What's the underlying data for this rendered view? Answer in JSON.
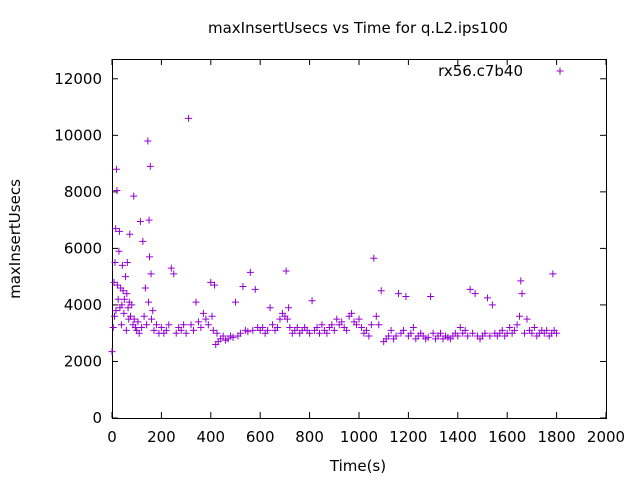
{
  "chart_data": {
    "type": "scatter",
    "title": "maxInsertUsecs vs Time for q.L2.ips100",
    "xlabel": "Time(s)",
    "ylabel": "maxInsertUsecs",
    "xlim": [
      0,
      2000
    ],
    "ylim": [
      0,
      12700
    ],
    "x_ticks": [
      0,
      200,
      400,
      600,
      800,
      1000,
      1200,
      1400,
      1600,
      1800,
      2000
    ],
    "y_ticks": [
      0,
      2000,
      4000,
      6000,
      8000,
      10000,
      12000
    ],
    "grid": false,
    "legend_position": "top-right",
    "series": [
      {
        "name": "rx56.c7b40",
        "color": "#9400d3",
        "marker": "plus",
        "points": [
          [
            0,
            2350
          ],
          [
            5,
            3200
          ],
          [
            8,
            4800
          ],
          [
            10,
            3600
          ],
          [
            12,
            5500
          ],
          [
            15,
            6700
          ],
          [
            16,
            3800
          ],
          [
            18,
            8800
          ],
          [
            20,
            8050
          ],
          [
            22,
            4700
          ],
          [
            25,
            4200
          ],
          [
            28,
            5900
          ],
          [
            30,
            6600
          ],
          [
            32,
            3900
          ],
          [
            35,
            4600
          ],
          [
            38,
            3300
          ],
          [
            40,
            4000
          ],
          [
            42,
            5400
          ],
          [
            45,
            4500
          ],
          [
            48,
            3700
          ],
          [
            50,
            4200
          ],
          [
            55,
            5000
          ],
          [
            58,
            3100
          ],
          [
            60,
            4400
          ],
          [
            62,
            5500
          ],
          [
            65,
            3900
          ],
          [
            68,
            3500
          ],
          [
            70,
            4100
          ],
          [
            72,
            6500
          ],
          [
            75,
            3600
          ],
          [
            80,
            4000
          ],
          [
            85,
            3300
          ],
          [
            88,
            7850
          ],
          [
            90,
            3500
          ],
          [
            95,
            3200
          ],
          [
            100,
            3100
          ],
          [
            105,
            3400
          ],
          [
            110,
            3000
          ],
          [
            115,
            6950
          ],
          [
            120,
            3200
          ],
          [
            125,
            6250
          ],
          [
            130,
            3600
          ],
          [
            135,
            4600
          ],
          [
            140,
            3300
          ],
          [
            145,
            9800
          ],
          [
            148,
            4100
          ],
          [
            150,
            7000
          ],
          [
            152,
            5700
          ],
          [
            155,
            8900
          ],
          [
            158,
            5100
          ],
          [
            160,
            3500
          ],
          [
            165,
            3800
          ],
          [
            170,
            3100
          ],
          [
            180,
            3300
          ],
          [
            190,
            3000
          ],
          [
            200,
            3200
          ],
          [
            210,
            3000
          ],
          [
            220,
            3100
          ],
          [
            230,
            3300
          ],
          [
            240,
            5300
          ],
          [
            250,
            5100
          ],
          [
            260,
            3000
          ],
          [
            270,
            3200
          ],
          [
            280,
            3100
          ],
          [
            290,
            3300
          ],
          [
            300,
            3000
          ],
          [
            310,
            10600
          ],
          [
            320,
            3300
          ],
          [
            330,
            3100
          ],
          [
            340,
            4100
          ],
          [
            350,
            3400
          ],
          [
            360,
            3200
          ],
          [
            370,
            3700
          ],
          [
            380,
            3500
          ],
          [
            390,
            3300
          ],
          [
            400,
            4800
          ],
          [
            405,
            3600
          ],
          [
            410,
            3100
          ],
          [
            415,
            4700
          ],
          [
            420,
            2600
          ],
          [
            425,
            3000
          ],
          [
            430,
            2700
          ],
          [
            440,
            2800
          ],
          [
            450,
            2900
          ],
          [
            460,
            2750
          ],
          [
            470,
            2800
          ],
          [
            480,
            2900
          ],
          [
            490,
            2850
          ],
          [
            500,
            4100
          ],
          [
            510,
            2900
          ],
          [
            520,
            3000
          ],
          [
            530,
            4650
          ],
          [
            540,
            3100
          ],
          [
            550,
            3050
          ],
          [
            560,
            5150
          ],
          [
            570,
            3100
          ],
          [
            580,
            4550
          ],
          [
            590,
            3200
          ],
          [
            600,
            3100
          ],
          [
            610,
            3200
          ],
          [
            620,
            3000
          ],
          [
            630,
            3100
          ],
          [
            640,
            3900
          ],
          [
            650,
            3300
          ],
          [
            660,
            3100
          ],
          [
            670,
            3200
          ],
          [
            680,
            3500
          ],
          [
            690,
            3700
          ],
          [
            700,
            3600
          ],
          [
            705,
            5200
          ],
          [
            710,
            3500
          ],
          [
            715,
            3900
          ],
          [
            720,
            3200
          ],
          [
            730,
            3000
          ],
          [
            740,
            3100
          ],
          [
            750,
            3200
          ],
          [
            760,
            3000
          ],
          [
            770,
            3100
          ],
          [
            780,
            3200
          ],
          [
            790,
            3100
          ],
          [
            800,
            3000
          ],
          [
            810,
            4150
          ],
          [
            820,
            3100
          ],
          [
            830,
            3200
          ],
          [
            840,
            3000
          ],
          [
            850,
            3300
          ],
          [
            860,
            3100
          ],
          [
            870,
            3000
          ],
          [
            880,
            3200
          ],
          [
            890,
            3300
          ],
          [
            900,
            3100
          ],
          [
            910,
            3500
          ],
          [
            920,
            3300
          ],
          [
            930,
            3400
          ],
          [
            940,
            3200
          ],
          [
            950,
            3100
          ],
          [
            960,
            3600
          ],
          [
            970,
            3700
          ],
          [
            980,
            3400
          ],
          [
            990,
            3300
          ],
          [
            1000,
            3500
          ],
          [
            1010,
            3200
          ],
          [
            1020,
            3000
          ],
          [
            1030,
            3100
          ],
          [
            1040,
            2900
          ],
          [
            1050,
            3300
          ],
          [
            1060,
            5650
          ],
          [
            1070,
            3600
          ],
          [
            1080,
            3300
          ],
          [
            1090,
            4500
          ],
          [
            1100,
            2700
          ],
          [
            1110,
            2800
          ],
          [
            1120,
            2900
          ],
          [
            1130,
            3100
          ],
          [
            1140,
            2800
          ],
          [
            1150,
            2900
          ],
          [
            1160,
            4400
          ],
          [
            1170,
            3000
          ],
          [
            1180,
            3100
          ],
          [
            1190,
            4300
          ],
          [
            1200,
            2900
          ],
          [
            1210,
            3000
          ],
          [
            1220,
            3200
          ],
          [
            1230,
            2800
          ],
          [
            1240,
            2900
          ],
          [
            1250,
            3000
          ],
          [
            1260,
            2900
          ],
          [
            1270,
            2800
          ],
          [
            1280,
            2850
          ],
          [
            1290,
            4300
          ],
          [
            1300,
            3000
          ],
          [
            1310,
            2800
          ],
          [
            1320,
            2900
          ],
          [
            1330,
            3000
          ],
          [
            1340,
            2800
          ],
          [
            1350,
            2900
          ],
          [
            1360,
            2850
          ],
          [
            1370,
            2800
          ],
          [
            1380,
            2900
          ],
          [
            1390,
            3000
          ],
          [
            1400,
            2900
          ],
          [
            1410,
            3200
          ],
          [
            1420,
            3000
          ],
          [
            1430,
            3100
          ],
          [
            1440,
            2900
          ],
          [
            1450,
            4550
          ],
          [
            1460,
            3000
          ],
          [
            1470,
            4400
          ],
          [
            1480,
            2900
          ],
          [
            1490,
            2800
          ],
          [
            1500,
            2900
          ],
          [
            1510,
            3000
          ],
          [
            1520,
            4250
          ],
          [
            1530,
            2900
          ],
          [
            1540,
            4000
          ],
          [
            1550,
            3000
          ],
          [
            1560,
            2900
          ],
          [
            1570,
            3000
          ],
          [
            1580,
            3100
          ],
          [
            1590,
            2900
          ],
          [
            1600,
            3000
          ],
          [
            1610,
            3200
          ],
          [
            1620,
            3000
          ],
          [
            1630,
            3100
          ],
          [
            1640,
            3300
          ],
          [
            1650,
            3600
          ],
          [
            1655,
            4850
          ],
          [
            1660,
            4400
          ],
          [
            1670,
            3000
          ],
          [
            1680,
            3500
          ],
          [
            1690,
            3100
          ],
          [
            1700,
            3000
          ],
          [
            1710,
            3200
          ],
          [
            1720,
            2900
          ],
          [
            1730,
            3000
          ],
          [
            1740,
            3100
          ],
          [
            1750,
            3000
          ],
          [
            1760,
            3100
          ],
          [
            1770,
            2900
          ],
          [
            1780,
            3000
          ],
          [
            1785,
            5100
          ],
          [
            1790,
            3100
          ],
          [
            1800,
            3000
          ]
        ]
      }
    ]
  }
}
